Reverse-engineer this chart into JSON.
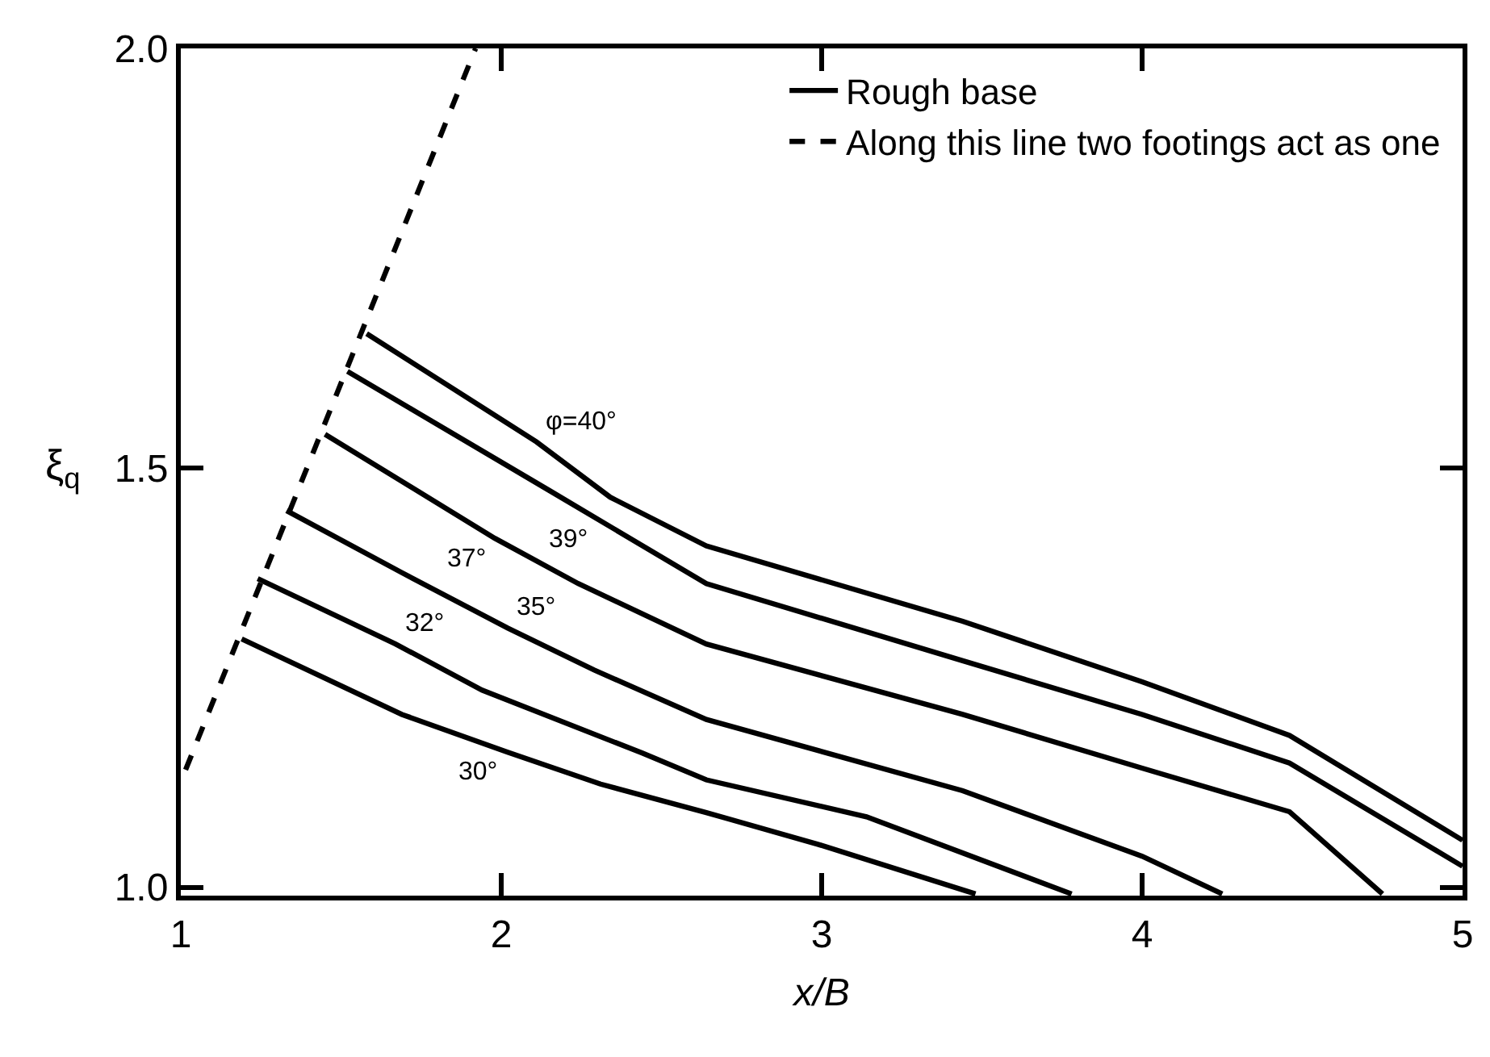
{
  "chart_data": {
    "type": "line",
    "xlabel": "x/B",
    "ylabel": "ξ$_{q}$",
    "xlim": [
      1,
      5
    ],
    "xticks": [
      1,
      2,
      3,
      4,
      5
    ],
    "ylim": [
      0.99,
      2.0
    ],
    "yticks": [
      {
        "value": 1,
        "label": "1.0"
      },
      1.5,
      {
        "value": 2,
        "label": "2.0"
      }
    ],
    "legend": "top right",
    "marker": "none",
    "series": [
      {
        "name": "Rough base",
        "color": "#000000",
        "line_style": "solid",
        "x": [
          1.19,
          1.69,
          2.02,
          2.31,
          2.64,
          2.99,
          3.48
        ],
        "values": [
          1.296,
          1.206,
          1.161,
          1.123,
          1.089,
          1.051,
          0.992
        ]
      },
      {
        "color": "#000000",
        "line_style": "solid",
        "x": [
          1.24,
          1.67,
          1.94,
          2.44,
          2.64,
          3.14,
          3.78
        ],
        "values": [
          1.368,
          1.29,
          1.235,
          1.16,
          1.128,
          1.084,
          0.992
        ]
      },
      {
        "color": "#000000",
        "line_style": "solid",
        "x": [
          1.33,
          1.69,
          2.02,
          2.29,
          2.64,
          3.44,
          4.0,
          4.25
        ],
        "values": [
          1.449,
          1.375,
          1.309,
          1.259,
          1.2,
          1.115,
          1.037,
          0.992
        ]
      },
      {
        "color": "#000000",
        "line_style": "solid",
        "x": [
          1.45,
          1.98,
          2.24,
          2.64,
          3.44,
          4.0,
          4.46,
          4.75
        ],
        "values": [
          1.54,
          1.416,
          1.362,
          1.29,
          1.206,
          1.142,
          1.09,
          0.992
        ]
      },
      {
        "color": "#000000",
        "line_style": "solid",
        "x": [
          1.52,
          2.15,
          2.64,
          3.44,
          4.0,
          4.46,
          5.0
        ],
        "values": [
          1.615,
          1.473,
          1.362,
          1.27,
          1.206,
          1.148,
          1.025
        ]
      },
      {
        "color": "#000000",
        "line_style": "solid",
        "x": [
          1.58,
          2.11,
          2.34,
          2.64,
          3.44,
          4.0,
          4.46,
          5.0
        ],
        "values": [
          1.66,
          1.531,
          1.465,
          1.407,
          1.317,
          1.245,
          1.181,
          1.056
        ]
      },
      {
        "name": "Along this line two footings act as one",
        "color": "#000000",
        "line_style": "dashed",
        "x": [
          1.015,
          1.92
        ],
        "values": [
          1.14,
          2.0
        ]
      }
    ],
    "annotations": [
      {
        "text": "φ=40°",
        "x": 2.11,
        "y": 1.531
      },
      {
        "text": "39°",
        "x": 2.3,
        "y": 1.439
      },
      {
        "text": "37°",
        "x": 1.98,
        "y": 1.416
      },
      {
        "text": "35°",
        "x": 2.02,
        "y": 1.309
      },
      {
        "text": "32°",
        "x": 1.67,
        "y": 1.29
      },
      {
        "text": "30°",
        "x": 2.02,
        "y": 1.161
      }
    ]
  }
}
